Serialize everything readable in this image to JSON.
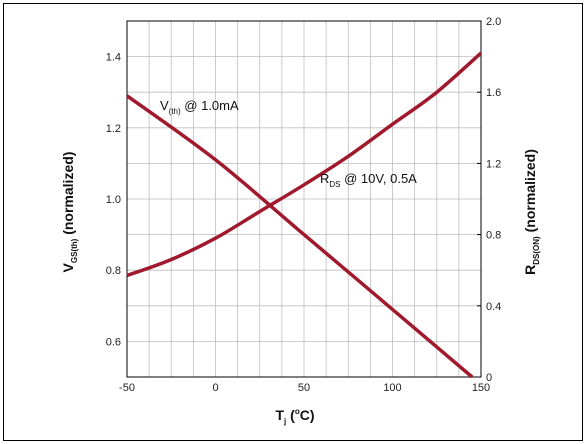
{
  "chart_data": {
    "type": "line",
    "xlabel": {
      "main": "T",
      "sub": "j",
      "tail": " (",
      "sup": "o",
      "end": "C)"
    },
    "ylabel_left": {
      "main": "V",
      "sub": "GS(th)",
      "tail": " (normalized)"
    },
    "ylabel_right": {
      "main": "R",
      "sub": "DS(ON)",
      "tail": " (normalized)"
    },
    "xlim": [
      -50,
      150
    ],
    "ylim_left": [
      0.5,
      1.5
    ],
    "ylim_right": [
      0,
      2.0
    ],
    "x_ticks": [
      "-50",
      "0",
      "50",
      "100",
      "150"
    ],
    "y_left_ticks": [
      "0.6",
      "0.8",
      "1.0",
      "1.2",
      "1.4"
    ],
    "y_right_ticks": [
      "0",
      "0.4",
      "0.8",
      "1.2",
      "1.6",
      "2.0"
    ],
    "grid": true,
    "line_color": "#a0192d",
    "series": [
      {
        "name": "V(th) @ 1.0mA",
        "axis": "left",
        "x": [
          -50,
          0,
          50,
          100,
          145
        ],
        "y": [
          1.29,
          1.11,
          0.9,
          0.69,
          0.5
        ]
      },
      {
        "name": "RDS @ 10V, 0.5A",
        "axis": "right",
        "x": [
          -50,
          -25,
          0,
          25,
          50,
          75,
          100,
          125,
          150
        ],
        "y": [
          0.57,
          0.66,
          0.78,
          0.93,
          1.08,
          1.24,
          1.42,
          1.6,
          1.82
        ]
      }
    ],
    "annotations": [
      {
        "main": "V",
        "sub": "(th)",
        "tail": " @ 1.0mA"
      },
      {
        "main": "R",
        "sub": "DS",
        "tail": " @ 10V, 0.5A"
      }
    ]
  }
}
